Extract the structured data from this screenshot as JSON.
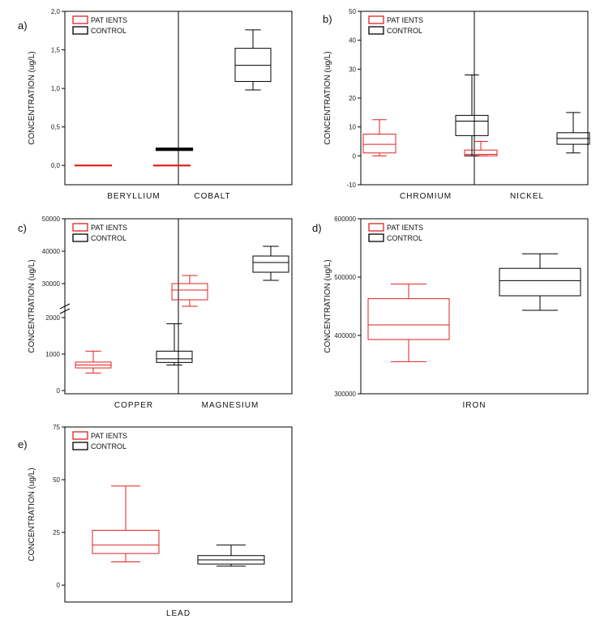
{
  "colors": {
    "patients": "#e02020",
    "control": "#000000"
  },
  "legend": {
    "patients": "PAT IENTS",
    "control": "CONTROL"
  },
  "chart_data": [
    {
      "type": "box",
      "panel_label": "a)",
      "ylabel": "CONCENTRATION (ug/L)",
      "ylim": [
        -0.25,
        2.0
      ],
      "yticks": [
        "0,0",
        "0,5",
        "1,0",
        "1,5",
        "2,0"
      ],
      "categories": [
        "BERYLLIUM",
        "COBALT"
      ],
      "series": [
        {
          "name": "PAT IENTS",
          "boxes": [
            {
              "min": 0,
              "q1": 0,
              "median": 0,
              "q3": 0,
              "max": 0
            },
            {
              "min": 0,
              "q1": 0,
              "median": 0,
              "q3": 0,
              "max": 0
            }
          ]
        },
        {
          "name": "CONTROL",
          "boxes": [
            {
              "min": 0.2,
              "q1": 0.2,
              "median": 0.21,
              "q3": 0.22,
              "max": 0.22
            },
            {
              "min": 0.98,
              "q1": 1.09,
              "median": 1.3,
              "q3": 1.52,
              "max": 1.76
            }
          ]
        }
      ]
    },
    {
      "type": "box",
      "panel_label": "b)",
      "ylabel": "CONCENTRATION (ug/L)",
      "ylim": [
        -10,
        50
      ],
      "yticks": [
        "-10",
        "0",
        "10",
        "20",
        "30",
        "40",
        "50"
      ],
      "categories": [
        "CHROMIUM",
        "NICKEL"
      ],
      "series": [
        {
          "name": "PAT IENTS",
          "boxes": [
            {
              "min": 0,
              "q1": 1,
              "median": 4,
              "q3": 7.5,
              "max": 12.5
            },
            {
              "min": 0,
              "q1": 0,
              "median": 0.5,
              "q3": 2,
              "max": 5
            }
          ]
        },
        {
          "name": "CONTROL",
          "boxes": [
            {
              "min": 0,
              "q1": 7,
              "median": 12,
              "q3": 14,
              "max": 28
            },
            {
              "min": 1,
              "q1": 4,
              "median": 6,
              "q3": 8,
              "max": 15
            }
          ]
        }
      ]
    },
    {
      "type": "box",
      "panel_label": "c)",
      "ylabel": "CONCENTRATION (ug/L)",
      "ylim": [
        0,
        50000
      ],
      "axis_break": {
        "from": 2000,
        "to": 25000
      },
      "yticks": [
        "0",
        "1000",
        "2000",
        "30000",
        "40000",
        "50000"
      ],
      "categories": [
        "COPPER",
        "MAGNESIUM"
      ],
      "series": [
        {
          "name": "PAT IENTS",
          "boxes": [
            {
              "min": 480,
              "q1": 620,
              "median": 700,
              "q3": 780,
              "max": 1080
            },
            {
              "min": 23000,
              "q1": 25000,
              "median": 28000,
              "q3": 30000,
              "max": 32500
            }
          ]
        },
        {
          "name": "CONTROL",
          "boxes": [
            {
              "min": 700,
              "q1": 770,
              "median": 870,
              "q3": 1080,
              "max": 1830
            },
            {
              "min": 31000,
              "q1": 33500,
              "median": 36500,
              "q3": 38500,
              "max": 41500
            }
          ]
        }
      ]
    },
    {
      "type": "box",
      "panel_label": "d)",
      "ylabel": "CONCENTRATION (ug/L)",
      "ylim": [
        300000,
        600000
      ],
      "yticks": [
        "300000",
        "400000",
        "500000",
        "600000"
      ],
      "categories": [
        "IRON"
      ],
      "series": [
        {
          "name": "PAT IENTS",
          "boxes": [
            {
              "min": 355000,
              "q1": 393000,
              "median": 418000,
              "q3": 463000,
              "max": 488000
            }
          ]
        },
        {
          "name": "CONTROL",
          "boxes": [
            {
              "min": 443000,
              "q1": 468000,
              "median": 494000,
              "q3": 515000,
              "max": 540000
            }
          ]
        }
      ]
    },
    {
      "type": "box",
      "panel_label": "e)",
      "ylabel": "CONCENTRATION (ug/L)",
      "ylim": [
        -8,
        75
      ],
      "yticks": [
        "0",
        "25",
        "50",
        "75"
      ],
      "categories": [
        "LEAD"
      ],
      "series": [
        {
          "name": "PAT IENTS",
          "boxes": [
            {
              "min": 11,
              "q1": 15,
              "median": 19,
              "q3": 26,
              "max": 47
            }
          ]
        },
        {
          "name": "CONTROL",
          "boxes": [
            {
              "min": 9,
              "q1": 10,
              "median": 12,
              "q3": 14,
              "max": 19
            }
          ]
        }
      ]
    }
  ]
}
